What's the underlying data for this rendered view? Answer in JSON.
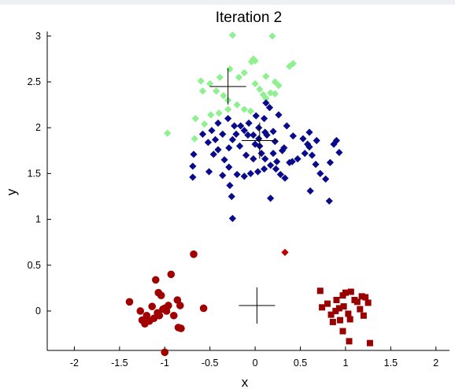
{
  "chart_data": {
    "type": "scatter",
    "title": "Iteration 2",
    "xlabel": "x",
    "ylabel": "y",
    "xlim": [
      -2.3,
      2.15
    ],
    "ylim": [
      -0.43,
      3.05
    ],
    "x_ticks": [
      -2,
      -1.5,
      -1,
      -0.5,
      0,
      0.5,
      1,
      1.5,
      2
    ],
    "x_tick_labels": [
      "-2",
      "-1.5",
      "-1",
      "-0.5",
      "0",
      "0.5",
      "1",
      "1.5",
      "2"
    ],
    "y_ticks": [
      0,
      0.5,
      1,
      1.5,
      2,
      2.5,
      3
    ],
    "y_tick_labels": [
      "0",
      "0.5",
      "1",
      "1.5",
      "2",
      "2.5",
      "3"
    ],
    "grid": false,
    "series": [
      {
        "marker": "diamond",
        "color": "#8ef08e",
        "points": [
          [
            -0.25,
            3.01
          ],
          [
            0.19,
            3.0
          ],
          [
            -0.6,
            2.51
          ],
          [
            -0.5,
            2.48
          ],
          [
            -0.39,
            2.55
          ],
          [
            -0.28,
            2.64
          ],
          [
            -0.12,
            2.6
          ],
          [
            -0.04,
            2.72
          ],
          [
            -0.02,
            2.75
          ],
          [
            0.0,
            2.73
          ],
          [
            0.38,
            2.67
          ],
          [
            0.42,
            2.7
          ],
          [
            -0.18,
            2.55
          ],
          [
            0.0,
            2.48
          ],
          [
            0.12,
            2.56
          ],
          [
            0.22,
            2.5
          ],
          [
            0.26,
            2.46
          ],
          [
            -0.58,
            2.4
          ],
          [
            -0.43,
            2.4
          ],
          [
            -0.35,
            2.35
          ],
          [
            -0.3,
            2.3
          ],
          [
            -0.2,
            2.25
          ],
          [
            -0.12,
            2.2
          ],
          [
            -0.05,
            2.18
          ],
          [
            0.17,
            2.38
          ],
          [
            0.12,
            2.32
          ],
          [
            0.22,
            2.37
          ],
          [
            -0.66,
            2.1
          ],
          [
            -0.56,
            2.04
          ],
          [
            -0.49,
            2.14
          ],
          [
            -0.4,
            2.16
          ],
          [
            -0.3,
            2.2
          ],
          [
            -0.67,
            1.88
          ],
          [
            -0.97,
            1.94
          ],
          [
            0.09,
            2.36
          ],
          [
            0.05,
            2.42
          ]
        ]
      },
      {
        "marker": "diamond",
        "color": "#0a0a8c",
        "points": [
          [
            -0.41,
            1.76
          ],
          [
            -0.34,
            1.65
          ],
          [
            -0.29,
            1.57
          ],
          [
            -0.2,
            1.49
          ],
          [
            -0.12,
            1.47
          ],
          [
            -0.05,
            1.5
          ],
          [
            0.03,
            1.52
          ],
          [
            0.1,
            1.55
          ],
          [
            0.17,
            1.59
          ],
          [
            0.23,
            1.55
          ],
          [
            0.28,
            1.49
          ],
          [
            0.33,
            1.45
          ],
          [
            0.41,
            1.63
          ],
          [
            0.47,
            1.66
          ],
          [
            0.55,
            1.72
          ],
          [
            0.6,
            1.79
          ],
          [
            0.63,
            1.7
          ],
          [
            0.67,
            1.6
          ],
          [
            0.72,
            1.5
          ],
          [
            0.78,
            1.44
          ],
          [
            0.58,
            1.82
          ],
          [
            0.53,
            1.88
          ],
          [
            0.6,
            1.95
          ],
          [
            0.68,
            1.86
          ],
          [
            0.87,
            1.82
          ],
          [
            0.9,
            1.86
          ],
          [
            0.93,
            1.73
          ],
          [
            0.83,
            1.62
          ],
          [
            0.61,
            1.31
          ],
          [
            0.82,
            1.2
          ],
          [
            -0.46,
            1.71
          ],
          [
            -0.52,
            1.84
          ],
          [
            -0.58,
            1.93
          ],
          [
            -0.48,
            1.97
          ],
          [
            -0.41,
            2.05
          ],
          [
            -0.3,
            2.1
          ],
          [
            -0.23,
            2.02
          ],
          [
            -0.16,
            2.02
          ],
          [
            -0.12,
            1.97
          ],
          [
            -0.08,
            1.92
          ],
          [
            -0.02,
            1.92
          ],
          [
            0.04,
            2.0
          ],
          [
            0.1,
            2.1
          ],
          [
            0.12,
            2.27
          ],
          [
            0.16,
            2.22
          ],
          [
            0.26,
            2.14
          ],
          [
            0.35,
            2.02
          ],
          [
            0.42,
            1.91
          ],
          [
            0.32,
            1.78
          ],
          [
            0.2,
            1.72
          ],
          [
            0.11,
            1.66
          ],
          [
            0.07,
            1.72
          ],
          [
            0.0,
            1.82
          ],
          [
            -0.02,
            1.66
          ],
          [
            -0.1,
            1.7
          ],
          [
            -0.17,
            1.8
          ],
          [
            -0.25,
            1.87
          ],
          [
            -0.29,
            1.78
          ],
          [
            -0.36,
            1.93
          ],
          [
            -0.44,
            1.87
          ],
          [
            -0.68,
            1.71
          ],
          [
            -0.69,
            1.58
          ],
          [
            -0.51,
            1.52
          ],
          [
            -0.36,
            1.48
          ],
          [
            -0.28,
            1.37
          ],
          [
            -0.26,
            1.25
          ],
          [
            -0.25,
            1.01
          ],
          [
            0.17,
            1.23
          ],
          [
            0.11,
            1.95
          ],
          [
            0.2,
            1.96
          ],
          [
            0.22,
            1.85
          ],
          [
            0.3,
            1.75
          ],
          [
            0.38,
            1.62
          ],
          [
            -0.07,
            2.05
          ],
          [
            0.01,
            2.13
          ],
          [
            0.04,
            1.88
          ],
          [
            0.13,
            1.92
          ],
          [
            0.24,
            1.63
          ],
          [
            -0.69,
            1.46
          ],
          [
            -0.21,
            1.93
          ],
          [
            0.05,
            1.8
          ]
        ]
      },
      {
        "marker": "diamond",
        "color": "#c00000",
        "points": [
          [
            0.33,
            0.64
          ]
        ]
      },
      {
        "marker": "circle",
        "color": "#a00000",
        "points": [
          [
            -1.39,
            0.1
          ],
          [
            -1.27,
            0.0
          ],
          [
            -1.25,
            -0.1
          ],
          [
            -1.22,
            -0.14
          ],
          [
            -1.17,
            -0.11
          ],
          [
            -1.14,
            0.05
          ],
          [
            -1.1,
            0.34
          ],
          [
            -1.07,
            0.2
          ],
          [
            -1.06,
            -0.05
          ],
          [
            -1.04,
            0.17
          ],
          [
            -1.02,
            0.02
          ],
          [
            -1.0,
            0.03
          ],
          [
            -0.98,
            0.0
          ],
          [
            -0.96,
            0.06
          ],
          [
            -0.93,
            0.4
          ],
          [
            -0.9,
            -0.05
          ],
          [
            -0.86,
            0.12
          ],
          [
            -0.85,
            -0.18
          ],
          [
            -0.83,
            0.06
          ],
          [
            -0.82,
            -0.19
          ],
          [
            -0.68,
            0.62
          ],
          [
            -0.57,
            0.03
          ],
          [
            -1.2,
            -0.05
          ],
          [
            -1.12,
            -0.08
          ],
          [
            -1.08,
            -0.02
          ],
          [
            -1.0,
            -0.45
          ]
        ]
      },
      {
        "marker": "square",
        "color": "#990000",
        "points": [
          [
            0.72,
            0.22
          ],
          [
            0.74,
            0.04
          ],
          [
            0.8,
            0.08
          ],
          [
            0.84,
            -0.04
          ],
          [
            0.86,
            -0.12
          ],
          [
            0.9,
            0.12
          ],
          [
            0.93,
            0.03
          ],
          [
            0.94,
            -0.1
          ],
          [
            0.97,
            0.17
          ],
          [
            0.98,
            0.05
          ],
          [
            1.0,
            0.2
          ],
          [
            1.03,
            -0.03
          ],
          [
            1.05,
            -0.09
          ],
          [
            1.06,
            0.21
          ],
          [
            1.1,
            0.12
          ],
          [
            1.13,
            0.1
          ],
          [
            1.16,
            0.02
          ],
          [
            1.18,
            0.16
          ],
          [
            1.2,
            -0.05
          ],
          [
            1.22,
            0.15
          ],
          [
            1.25,
            0.09
          ],
          [
            0.97,
            -0.22
          ],
          [
            1.04,
            -0.33
          ],
          [
            1.27,
            -0.35
          ],
          [
            0.89,
            0.0
          ]
        ]
      }
    ],
    "centroids": [
      [
        -0.3,
        2.45
      ],
      [
        0.05,
        1.86
      ],
      [
        0.02,
        0.06
      ]
    ]
  }
}
